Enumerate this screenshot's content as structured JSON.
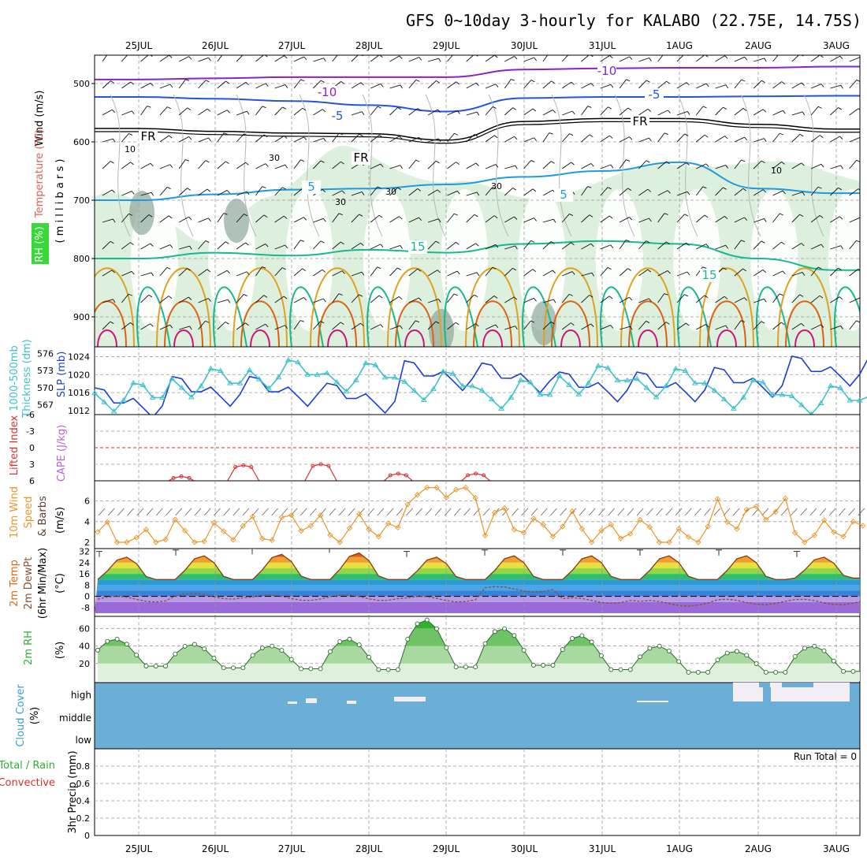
{
  "title": "GFS 0~10day 3-hourly for KALABO (22.75E, 14.75S)",
  "dates": [
    "25JUL",
    "26JUL",
    "27JUL",
    "28JUL",
    "29JUL",
    "30JUL",
    "31JUL",
    "1AUG",
    "2AUG",
    "3AUG"
  ],
  "colors": {
    "frame": "#000000",
    "grid": "#9a9a9a",
    "temp_m10": "#8a22c4",
    "temp_m5": "#2255dd",
    "temp_5": "#1e9be0",
    "temp_15": "#18b890",
    "temp_warm": "#e0a020",
    "temp_hot": "#e06010",
    "temp_hottest": "#d0107a",
    "rh_fill": "#cfe8cf",
    "slp": "#1b3fd4",
    "thickness": "#3ec1c9",
    "lifted_index": "#d83030",
    "cape": "#bb66cc",
    "wind10": "#e8962a",
    "temp2m_top": "#d86a10",
    "dewpt": "#8a5030",
    "rh2m": "#2fae2f",
    "cloud": "#6baed6",
    "precip_total": "#2fae2f",
    "precip_conv": "#d83030"
  },
  "panels": {
    "upper_air": {
      "y_title_wind": "Wind (m/s)",
      "y_title_temp": "Temperature (°C)",
      "y_title_rh": "RH (%)",
      "y_title_pressure": "( m i l l i b a r s )",
      "ticks": [
        "500",
        "600",
        "700",
        "800",
        "900"
      ],
      "contour_labels": [
        "-10",
        "-10",
        "-5",
        "-5",
        "FR",
        "FR",
        "FR",
        "5",
        "5",
        "15",
        "15",
        "10",
        "30",
        "30",
        "30",
        "10",
        "30"
      ]
    },
    "slp": {
      "left_title_1": "1000-500mb",
      "left_title_2": "Thickness (dm)",
      "right_title": "SLP (mb)",
      "left_ticks": [
        "576",
        "573",
        "570",
        "567"
      ],
      "right_ticks": [
        "1024",
        "1020",
        "1016",
        "1012"
      ]
    },
    "stability": {
      "left_title": "Lifted Index",
      "right_title": "CAPE (J/kg)",
      "ticks": [
        "-6",
        "-3",
        "0",
        "3",
        "6"
      ]
    },
    "wind10m": {
      "title_1": "10m Wind",
      "title_2": "Speed",
      "title_3": "& Barbs",
      "unit": "(m/s)",
      "ticks": [
        "6",
        "4",
        "2"
      ]
    },
    "temp2m": {
      "title_1": "2m Temp",
      "title_2": "2m DewPt",
      "title_3": "(6hr Min/Max)",
      "unit": "(°C)",
      "ticks": [
        "32",
        "24",
        "16",
        "8",
        "0",
        "-8"
      ]
    },
    "rh2m": {
      "title": "2m RH",
      "unit": "(%)",
      "ticks": [
        "60",
        "40",
        "20"
      ]
    },
    "cloud": {
      "title": "Cloud Cover",
      "unit": "(%)",
      "levels": [
        "high",
        "middle",
        "low"
      ]
    },
    "precip": {
      "title_total": "Total / Rain",
      "title_conv": "Convective",
      "y_title": "3hr Precip (mm)",
      "ticks": [
        "0.8",
        "0.6",
        "0.4",
        "0.2",
        "0"
      ],
      "run_total": "Run Total = 0"
    }
  },
  "chart_data": [
    {
      "type": "line",
      "name": "upper-air contour cross-section",
      "y_axis": "pressure (mb)",
      "ylim": [
        1000,
        450
      ],
      "x": [
        "25JUL",
        "26JUL",
        "27JUL",
        "28JUL",
        "29JUL",
        "30JUL",
        "31JUL",
        "1AUG",
        "2AUG",
        "3AUG"
      ],
      "series": [
        {
          "name": "-10",
          "unit": "°C",
          "pressure": [
            493,
            491,
            489,
            489,
            489,
            476,
            474,
            473,
            473,
            471
          ]
        },
        {
          "name": "-5",
          "unit": "°C",
          "pressure": [
            523,
            526,
            530,
            537,
            548,
            525,
            523,
            523,
            522,
            521
          ]
        },
        {
          "name": "FR",
          "unit": "°C",
          "pressure": [
            577,
            582,
            585,
            586,
            597,
            565,
            560,
            560,
            570,
            578
          ]
        },
        {
          "name": "5",
          "unit": "°C",
          "pressure": [
            700,
            690,
            682,
            680,
            673,
            660,
            650,
            635,
            680,
            688
          ]
        },
        {
          "name": "15",
          "unit": "°C",
          "pressure": [
            800,
            790,
            795,
            785,
            790,
            775,
            770,
            775,
            800,
            820
          ]
        }
      ]
    },
    {
      "type": "line",
      "name": "slp and thickness",
      "x": [
        "25JUL",
        "26JUL",
        "27JUL",
        "28JUL",
        "29JUL",
        "30JUL",
        "31JUL",
        "1AUG",
        "2AUG",
        "3AUG"
      ],
      "ylim_slp": [
        1012,
        1026
      ],
      "ylim_thickness": [
        566,
        577
      ],
      "series": [
        {
          "name": "SLP (mb)",
          "values": [
            1015,
            1013,
            1020,
            1013,
            1017,
            1023,
            1016,
            1019,
            1016,
            1021
          ]
        },
        {
          "name": "Thickness (dm)",
          "values": [
            570,
            567,
            575,
            570,
            574,
            567,
            571,
            572,
            570,
            568
          ]
        }
      ]
    },
    {
      "type": "line",
      "name": "lifted index",
      "x": [
        0.55,
        1.35,
        2.35,
        3.35,
        4.35
      ],
      "ylim": [
        -6,
        6
      ],
      "series": [
        {
          "name": "Lifted Index",
          "values": [
            5.5,
            3.5,
            3.3,
            5.0,
            5.0
          ]
        }
      ]
    },
    {
      "type": "line",
      "name": "10m wind speed",
      "x": [
        "25JUL",
        "26JUL",
        "27JUL",
        "28JUL",
        "29JUL",
        "30JUL",
        "31JUL",
        "1AUG",
        "2AUG",
        "3AUG"
      ],
      "ylim": [
        2,
        7.5
      ],
      "series": [
        {
          "name": "Speed",
          "values": [
            2.4,
            2.8,
            3.6,
            3.2,
            7.2,
            3.8,
            3.2,
            2.6,
            4.8,
            3.0
          ]
        }
      ]
    },
    {
      "type": "area",
      "name": "2m temperature",
      "x": [
        "25JUL",
        "26JUL",
        "27JUL",
        "28JUL",
        "29JUL",
        "30JUL",
        "31JUL",
        "1AUG",
        "2AUG",
        "3AUG"
      ],
      "ylim": [
        -12,
        34
      ],
      "series": [
        {
          "name": "2m Temp max",
          "values": [
            28,
            29,
            30,
            31,
            28,
            29,
            29,
            29,
            29,
            28
          ]
        },
        {
          "name": "2m Temp min",
          "values": [
            12,
            12,
            12,
            12,
            12,
            12,
            12,
            12,
            12,
            13
          ]
        },
        {
          "name": "2m DewPt",
          "values": [
            -2,
            0,
            -1,
            -1,
            -2,
            5,
            -3,
            -5,
            -4,
            -4
          ]
        }
      ]
    },
    {
      "type": "area",
      "name": "2m relative humidity",
      "x": [
        "25JUL",
        "26JUL",
        "27JUL",
        "28JUL",
        "29JUL",
        "30JUL",
        "31JUL",
        "1AUG",
        "2AUG",
        "3AUG"
      ],
      "ylim": [
        0,
        72
      ],
      "series": [
        {
          "name": "max",
          "values": [
            48,
            42,
            40,
            48,
            70,
            60,
            52,
            40,
            34,
            40
          ]
        },
        {
          "name": "min",
          "values": [
            17,
            15,
            14,
            13,
            16,
            18,
            13,
            10,
            10,
            11
          ]
        }
      ]
    },
    {
      "type": "heatmap",
      "name": "cloud cover",
      "levels": [
        "high",
        "middle",
        "low"
      ],
      "description_values": {
        "clear_high_after": "1AUG"
      }
    },
    {
      "type": "bar",
      "name": "3hr precipitation",
      "ylim": [
        0,
        1
      ],
      "values": [
        0,
        0,
        0,
        0,
        0,
        0,
        0,
        0,
        0,
        0
      ]
    }
  ]
}
